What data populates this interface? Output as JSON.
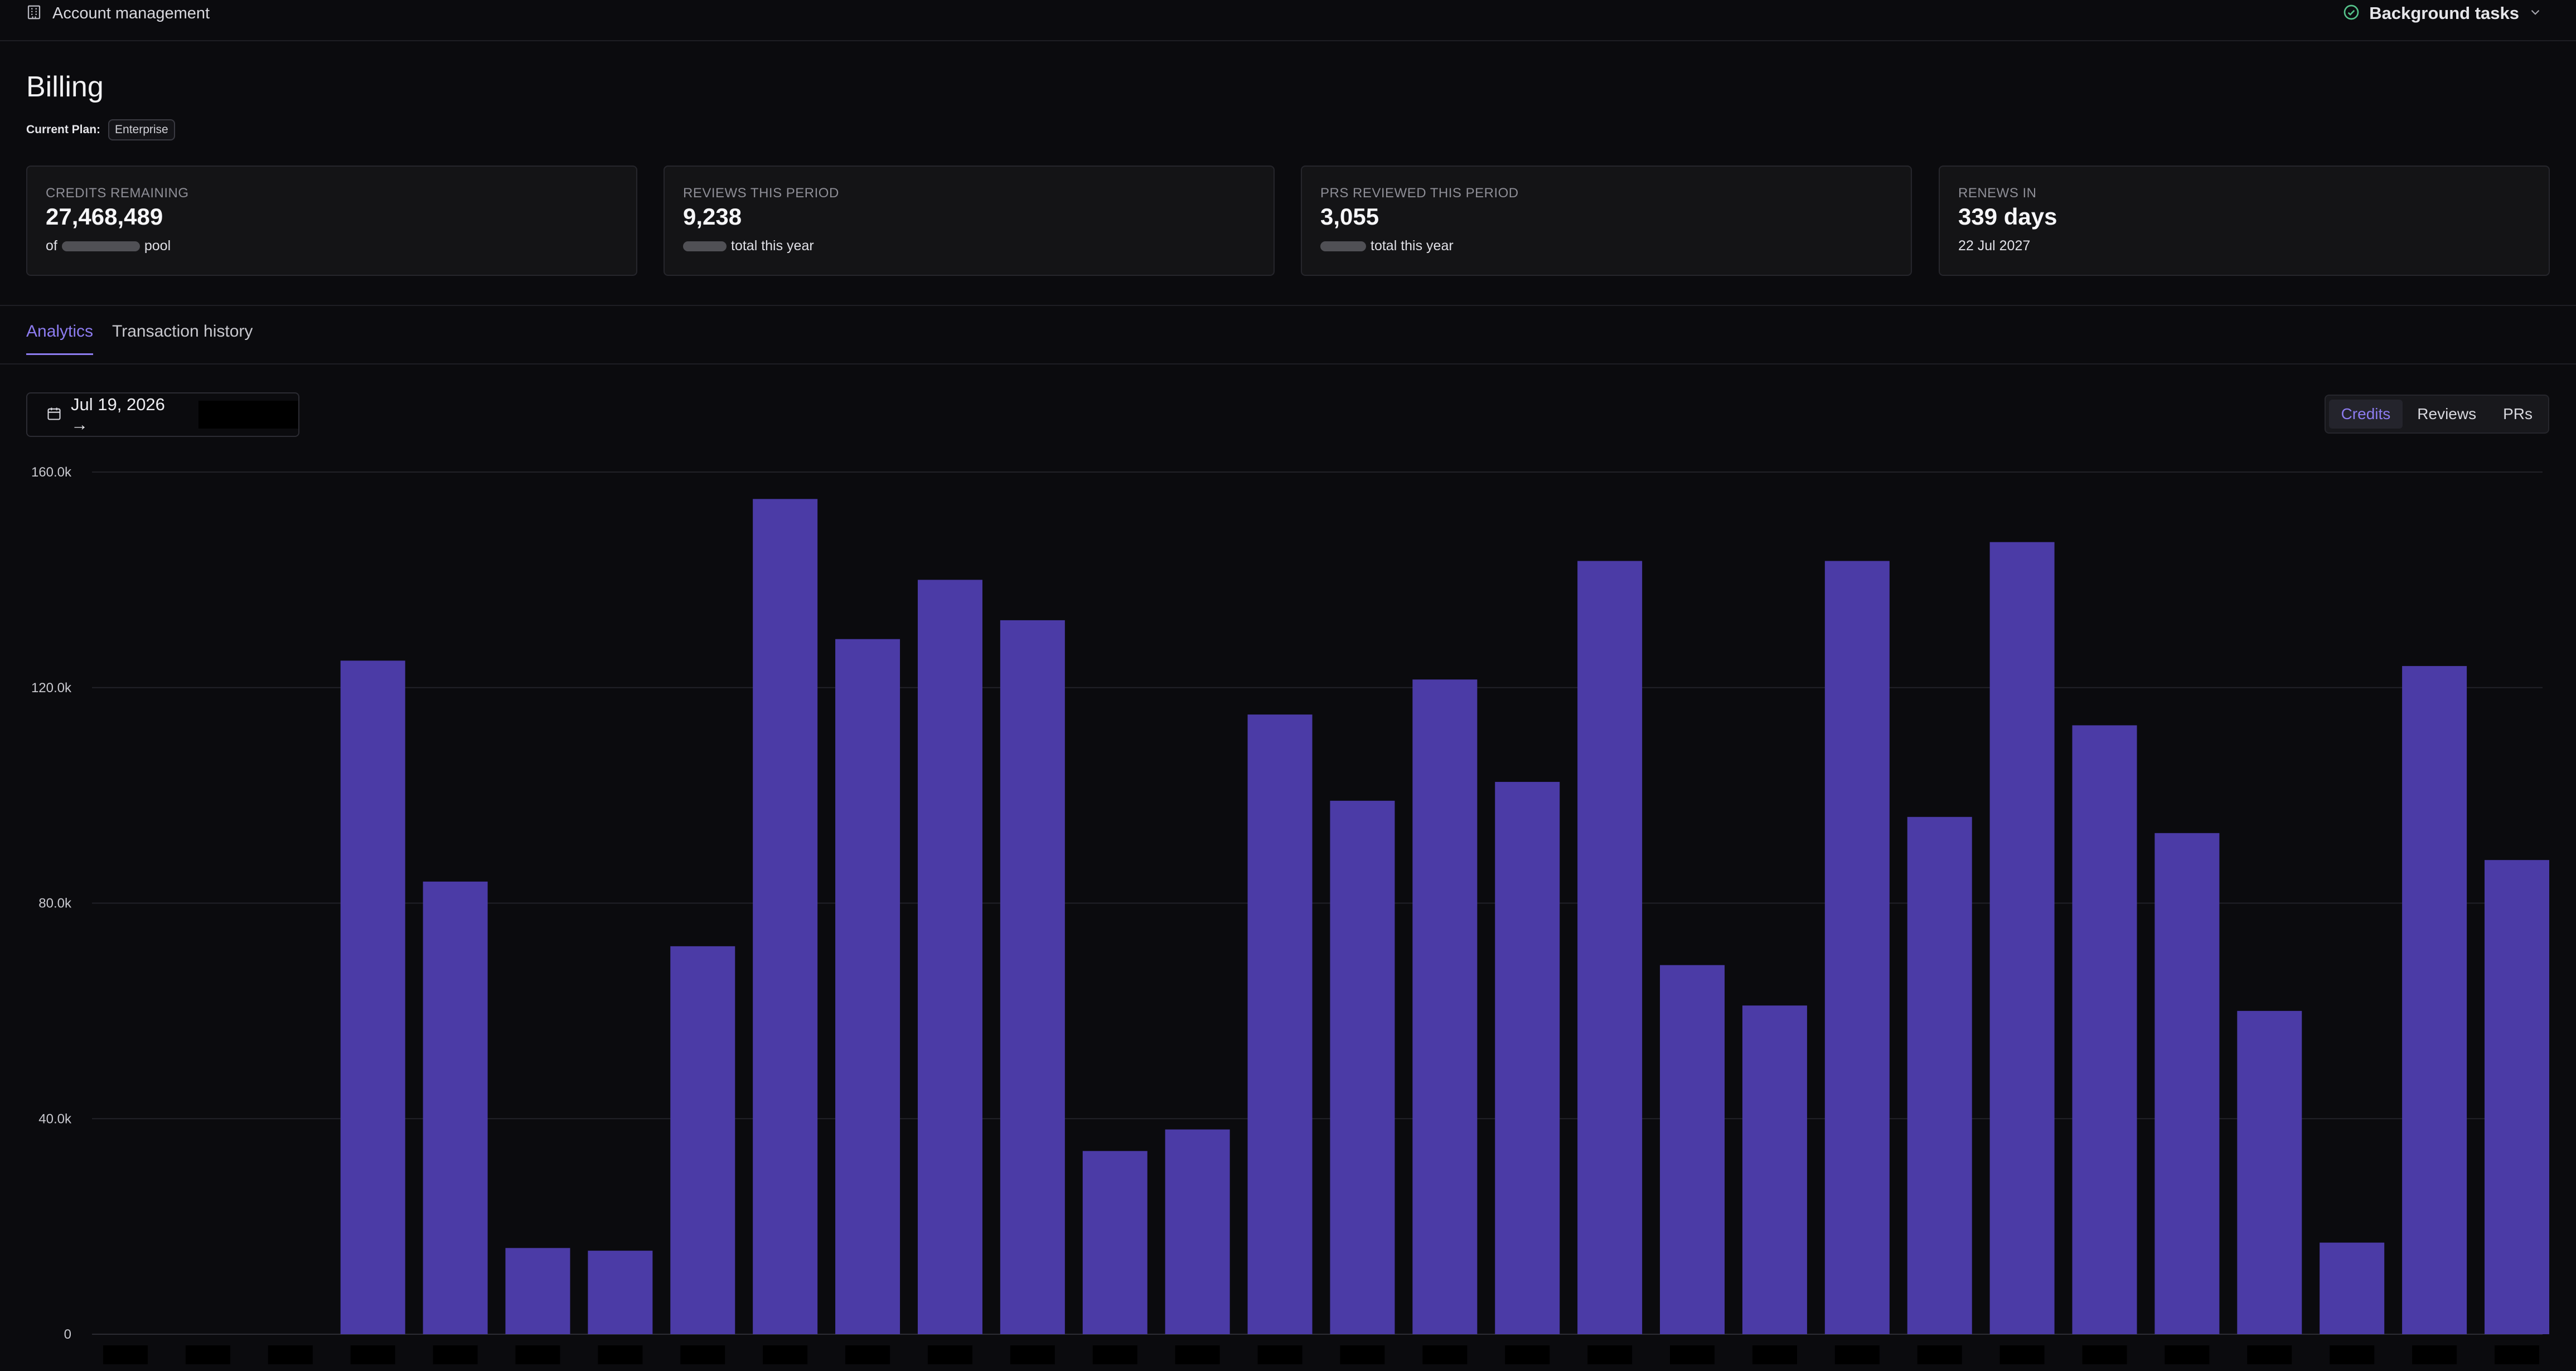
{
  "topbar": {
    "section_icon": "building-icon",
    "section_label": "Account management",
    "tasks_icon": "check-circle-icon",
    "tasks_label": "Background tasks",
    "tasks_chevron": "chevron-down-icon"
  },
  "page": {
    "title": "Billing",
    "plan_label": "Current Plan:",
    "plan_value": "Enterprise"
  },
  "stats": [
    {
      "label": "CREDITS REMAINING",
      "value": "27,468,489",
      "sub_prefix": "of",
      "sub_suffix": "pool"
    },
    {
      "label": "REVIEWS THIS PERIOD",
      "value": "9,238",
      "sub_prefix": "",
      "sub_suffix": "total this year"
    },
    {
      "label": "PRS REVIEWED THIS PERIOD",
      "value": "3,055",
      "sub_prefix": "",
      "sub_suffix": "total this year"
    },
    {
      "label": "RENEWS IN",
      "value": "339 days",
      "sub_prefix": "22 Jul 2027",
      "sub_suffix": ""
    }
  ],
  "tabs": [
    {
      "label": "Analytics",
      "active": true
    },
    {
      "label": "Transaction history",
      "active": false
    }
  ],
  "date_range": {
    "icon": "calendar-icon",
    "start": "Jul 19, 2026 →"
  },
  "metric_toggle": [
    {
      "label": "Credits",
      "active": true
    },
    {
      "label": "Reviews",
      "active": false
    },
    {
      "label": "PRs",
      "active": false
    }
  ],
  "colors": {
    "accent": "#8d7cf0",
    "bar": "#4b3ba6",
    "background": "#0b0b0e",
    "card": "#141416"
  },
  "chart_data": {
    "type": "bar",
    "ytick_labels": [
      "160.0k",
      "120.0k",
      "80.0k",
      "40.0k",
      "0"
    ],
    "yticks": [
      160000,
      120000,
      80000,
      40000,
      0
    ],
    "ylim": [
      0,
      160000
    ],
    "grid": true,
    "values": [
      0,
      0,
      0,
      125000,
      84000,
      16000,
      15500,
      72000,
      155000,
      129000,
      140000,
      132500,
      34000,
      38000,
      115000,
      99000,
      121500,
      102500,
      143500,
      68500,
      61000,
      143500,
      96000,
      147000,
      113000,
      93000,
      60000,
      17000,
      124000,
      88000
    ]
  }
}
